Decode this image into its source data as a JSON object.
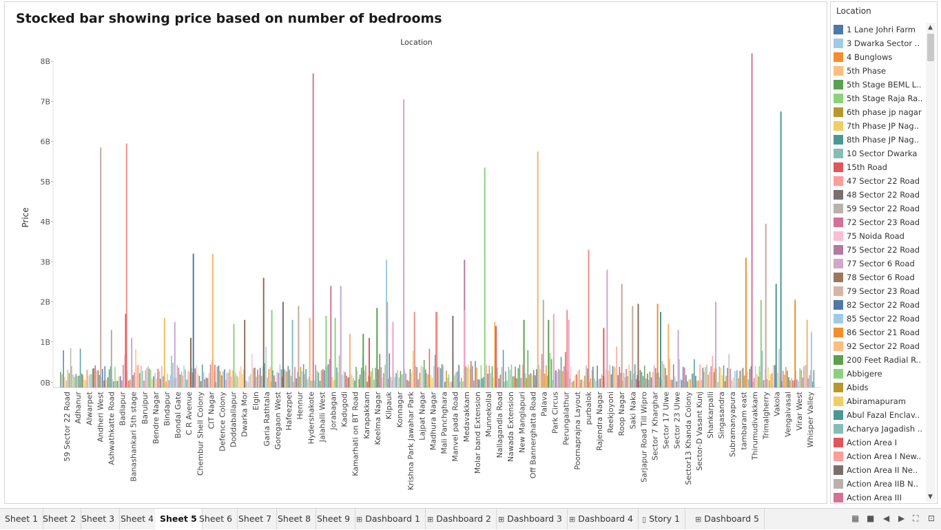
{
  "title": "Stocked bar showing price based on number of bedrooms",
  "chart_data": {
    "type": "bar",
    "stacked": true,
    "title": "Stocked bar showing price based on number of bedrooms",
    "top_axis_label": "Location",
    "xlabel": "",
    "ylabel": "Price",
    "ylim": [
      0,
      8500000000
    ],
    "y_ticks": [
      "0B",
      "1B",
      "2B",
      "3B",
      "4B",
      "5B",
      "6B",
      "7B",
      "8B"
    ],
    "grid": false,
    "legend_placement": "right",
    "categories": [
      "59 Sector 22 Road",
      "Adhanur",
      "Alwarpet",
      "Andheri West",
      "Ashwathkatte Road",
      "Badlapur",
      "Banashankari 5th stage",
      "Baruipur",
      "Bendre Nagar",
      "Bindapur",
      "Bondal Gate",
      "C R Avenue",
      "Chembur Shell Colony",
      "CIT Nagar",
      "Defence Colony",
      "Doddaballapur",
      "Dwarka Mor",
      "Elgin",
      "Garia Rathtala",
      "Goregaon West",
      "Hafeezpet",
      "Hennur",
      "Hydershakote",
      "Jalahalli West",
      "Jorabagan",
      "Kadugodi",
      "Kamarhati on BT Road",
      "Karapakkam",
      "Keelma Nagar",
      "Kilpauk",
      "Konnagar",
      "Krishna Park Jawahar Park",
      "Lajpat Nagar",
      "Madhura Nagar",
      "Mali Panchghara",
      "Manvel pada Road",
      "Medavakkam",
      "Molar band Extension",
      "Munnekollal",
      "Nallagandla Road",
      "Nawada Extension",
      "New Manglapuri",
      "Off Bannerghatta Road",
      "Palava",
      "Park Circus",
      "Perungalathur",
      "Poornaprajna Layout",
      "purbalok",
      "Rajendra Nagar",
      "Reekjoyoni",
      "Roop Nagar",
      "Saki Naka",
      "Sarjapur Road Till Wipro",
      "Sector 7 Kharghar",
      "Sector 17 Ulwe",
      "Sector 23 Ulwe",
      "Sector13 Khanda Colony",
      "Sector-D Vasant Kunj",
      "Shankarpalli",
      "Singasandra",
      "Subramanyapura",
      "tambaram east",
      "Thirumudivakkam",
      "Trimalgherry",
      "Vakola",
      "Vengaivasal",
      "Virar West",
      "Whisper Valley"
    ],
    "peaks": [
      {
        "x": 0.118,
        "value": 1.3,
        "color": "#b8a9a0"
      },
      {
        "x": 0.093,
        "value": 5.85,
        "color": "#c6a99b"
      },
      {
        "x": 0.153,
        "value": 5.95,
        "color": "#f28e89"
      },
      {
        "x": 0.151,
        "value": 1.7,
        "color": "#e15759"
      },
      {
        "x": 0.165,
        "value": 1.1,
        "color": "#c9a6d3"
      },
      {
        "x": 0.241,
        "value": 1.6,
        "color": "#eac15c"
      },
      {
        "x": 0.265,
        "value": 1.5,
        "color": "#c9a6d3"
      },
      {
        "x": 0.302,
        "value": 1.1,
        "color": "#8c6d5a"
      },
      {
        "x": 0.308,
        "value": 3.2,
        "color": "#4e79a7"
      },
      {
        "x": 0.353,
        "value": 3.2,
        "color": "#f7b36a"
      },
      {
        "x": 0.402,
        "value": 1.45,
        "color": "#8cd17d"
      },
      {
        "x": 0.427,
        "value": 1.55,
        "color": "#8c6d5a"
      },
      {
        "x": 0.471,
        "value": 2.6,
        "color": "#8c6d5a"
      },
      {
        "x": 0.49,
        "value": 1.8,
        "color": "#8cd17d"
      },
      {
        "x": 0.516,
        "value": 2.0,
        "color": "#79706e"
      },
      {
        "x": 0.538,
        "value": 1.55,
        "color": "#86bcb6"
      },
      {
        "x": 0.552,
        "value": 1.9,
        "color": "#c6a99b"
      },
      {
        "x": 0.578,
        "value": 1.6,
        "color": "#f7b36a"
      },
      {
        "x": 0.586,
        "value": 7.7,
        "color": "#d4739a"
      },
      {
        "x": 0.616,
        "value": 1.65,
        "color": "#8cd17d"
      },
      {
        "x": 0.627,
        "value": 2.4,
        "color": "#d4739a"
      },
      {
        "x": 0.637,
        "value": 1.6,
        "color": "#8cd17d"
      },
      {
        "x": 0.65,
        "value": 2.4,
        "color": "#c9a6d3"
      },
      {
        "x": 0.671,
        "value": 1.2,
        "color": "#f7b36a"
      },
      {
        "x": 0.702,
        "value": 1.2,
        "color": "#59a14f"
      },
      {
        "x": 0.716,
        "value": 1.1,
        "color": "#e15759"
      },
      {
        "x": 0.734,
        "value": 1.85,
        "color": "#59a14f"
      },
      {
        "x": 0.756,
        "value": 3.05,
        "color": "#a0cbe8"
      },
      {
        "x": 0.758,
        "value": 2.0,
        "color": "#c6a99b"
      },
      {
        "x": 0.771,
        "value": 1.5,
        "color": "#f1a1c1"
      },
      {
        "x": 0.796,
        "value": 7.05,
        "color": "#c9a6d3"
      },
      {
        "x": 0.821,
        "value": 1.75,
        "color": "#f28e89"
      },
      {
        "x": 0.871,
        "value": 1.75,
        "color": "#f28e89"
      },
      {
        "x": 0.873,
        "value": 1.75,
        "color": "#f28e89"
      },
      {
        "x": 0.91,
        "value": 1.65,
        "color": "#79706e"
      },
      {
        "x": 0.937,
        "value": 3.05,
        "color": "#b07aa1"
      },
      {
        "x": 0.937,
        "value": 1.8,
        "color": "#f1a1c1"
      },
      {
        "x": 0.984,
        "value": 5.35,
        "color": "#8cd17d"
      },
      {
        "x": 1.007,
        "value": 1.5,
        "color": "#f7b36a"
      },
      {
        "x": 1.01,
        "value": 1.4,
        "color": "#e15759"
      },
      {
        "x": 1.075,
        "value": 1.55,
        "color": "#59a14f"
      },
      {
        "x": 1.107,
        "value": 5.75,
        "color": "#f7b36a"
      },
      {
        "x": 1.12,
        "value": 2.05,
        "color": "#c6a99b"
      },
      {
        "x": 1.132,
        "value": 1.55,
        "color": "#59a14f"
      },
      {
        "x": 1.144,
        "value": 1.7,
        "color": "#f1a1c1"
      },
      {
        "x": 1.175,
        "value": 1.8,
        "color": "#f28e89"
      },
      {
        "x": 1.179,
        "value": 1.55,
        "color": "#f1a1c1"
      },
      {
        "x": 1.225,
        "value": 3.3,
        "color": "#f28e89"
      },
      {
        "x": 1.26,
        "value": 1.35,
        "color": "#e15759"
      },
      {
        "x": 1.268,
        "value": 2.8,
        "color": "#c9a6d3"
      },
      {
        "x": 1.302,
        "value": 2.45,
        "color": "#c6a99b"
      },
      {
        "x": 1.327,
        "value": 1.9,
        "color": "#c6a99b"
      },
      {
        "x": 1.34,
        "value": 1.95,
        "color": "#8c6d5a"
      },
      {
        "x": 1.385,
        "value": 1.95,
        "color": "#f28e2b"
      },
      {
        "x": 1.392,
        "value": 1.75,
        "color": "#499894"
      },
      {
        "x": 1.41,
        "value": 1.45,
        "color": "#f7b36a"
      },
      {
        "x": 1.433,
        "value": 1.3,
        "color": "#c9a6d3"
      },
      {
        "x": 1.52,
        "value": 2.0,
        "color": "#c9a6d3"
      },
      {
        "x": 1.59,
        "value": 3.1,
        "color": "#f28e2b"
      },
      {
        "x": 1.604,
        "value": 8.2,
        "color": "#d4739a"
      },
      {
        "x": 1.625,
        "value": 2.05,
        "color": "#8cd17d"
      },
      {
        "x": 1.636,
        "value": 3.95,
        "color": "#c6a99b"
      },
      {
        "x": 1.66,
        "value": 2.45,
        "color": "#499894"
      },
      {
        "x": 1.671,
        "value": 6.75,
        "color": "#499894"
      },
      {
        "x": 1.704,
        "value": 2.05,
        "color": "#f28e2b"
      },
      {
        "x": 1.732,
        "value": 1.55,
        "color": "#f7b36a"
      },
      {
        "x": 1.742,
        "value": 1.25,
        "color": "#a0cbe8"
      }
    ]
  },
  "legend": {
    "title": "Location",
    "items": [
      {
        "label": "1 Lane Johri Farm",
        "color": "#4e79a7"
      },
      {
        "label": "3 Dwarka Sector ..",
        "color": "#a0cbe8"
      },
      {
        "label": "4 Bunglows",
        "color": "#f28e2b"
      },
      {
        "label": "5th Phase",
        "color": "#ffbe7d"
      },
      {
        "label": "5th Stage BEML L..",
        "color": "#59a14f"
      },
      {
        "label": "5th Stage Raja Ra..",
        "color": "#8cd17d"
      },
      {
        "label": "6th phase jp nagar",
        "color": "#b6992d"
      },
      {
        "label": "7th Phase JP Nag..",
        "color": "#f1ce63"
      },
      {
        "label": "8th Phase JP Nag..",
        "color": "#499894"
      },
      {
        "label": "10 Sector Dwarka",
        "color": "#86bcb6"
      },
      {
        "label": "15th Road",
        "color": "#e15759"
      },
      {
        "label": "47 Sector 22 Road",
        "color": "#ff9d9a"
      },
      {
        "label": "48 Sector 22 Road",
        "color": "#79706e"
      },
      {
        "label": "59 Sector 22 Road",
        "color": "#bab0ac"
      },
      {
        "label": "72 Sector 23 Road",
        "color": "#d37295"
      },
      {
        "label": "75 Noida Road",
        "color": "#fabfd2"
      },
      {
        "label": "75 Sector 22 Road",
        "color": "#b07aa1"
      },
      {
        "label": "77 Sector 6 Road",
        "color": "#d4a6c8"
      },
      {
        "label": "78 Sector 6 Road",
        "color": "#9d7660"
      },
      {
        "label": "79 Sector 23 Road",
        "color": "#d7b5a6"
      },
      {
        "label": "82 Sector 22 Road",
        "color": "#4e79a7"
      },
      {
        "label": "85 Sector 22 Road",
        "color": "#a0cbe8"
      },
      {
        "label": "86 Sector 21 Road",
        "color": "#f28e2b"
      },
      {
        "label": "92 Sector 22 Road",
        "color": "#ffbe7d"
      },
      {
        "label": "200 Feet Radial R..",
        "color": "#59a14f"
      },
      {
        "label": "Abbigere",
        "color": "#8cd17d"
      },
      {
        "label": "Abids",
        "color": "#b6992d"
      },
      {
        "label": "Abiramapuram",
        "color": "#f1ce63"
      },
      {
        "label": "Abul Fazal Enclav..",
        "color": "#499894"
      },
      {
        "label": "Acharya Jagadish ..",
        "color": "#86bcb6"
      },
      {
        "label": "Action Area I",
        "color": "#e15759"
      },
      {
        "label": "Action Area I New..",
        "color": "#ff9d9a"
      },
      {
        "label": "Action Area II Ne..",
        "color": "#79706e"
      },
      {
        "label": "Action Area IIB N..",
        "color": "#bab0ac"
      },
      {
        "label": "Action Area III",
        "color": "#d37295"
      }
    ]
  },
  "tabs": [
    {
      "label": "Sheet 1",
      "icon": ""
    },
    {
      "label": "Sheet 2",
      "icon": ""
    },
    {
      "label": "Sheet 3",
      "icon": ""
    },
    {
      "label": "Sheet 4",
      "icon": ""
    },
    {
      "label": "Sheet 5",
      "icon": "",
      "active": true
    },
    {
      "label": "Sheet 6",
      "icon": ""
    },
    {
      "label": "Sheet 7",
      "icon": ""
    },
    {
      "label": "Sheet 8",
      "icon": ""
    },
    {
      "label": "Sheet 9",
      "icon": ""
    },
    {
      "label": "Dashboard 1",
      "icon": "dashboard-icon"
    },
    {
      "label": "Dashboard 2",
      "icon": "dashboard-icon"
    },
    {
      "label": "Dashboard 3",
      "icon": "dashboard-icon"
    },
    {
      "label": "Dashboard 4",
      "icon": "dashboard-icon"
    },
    {
      "label": "Story 1",
      "icon": "story-icon"
    },
    {
      "label": "Dashboard 5",
      "icon": "dashboard-icon"
    }
  ]
}
